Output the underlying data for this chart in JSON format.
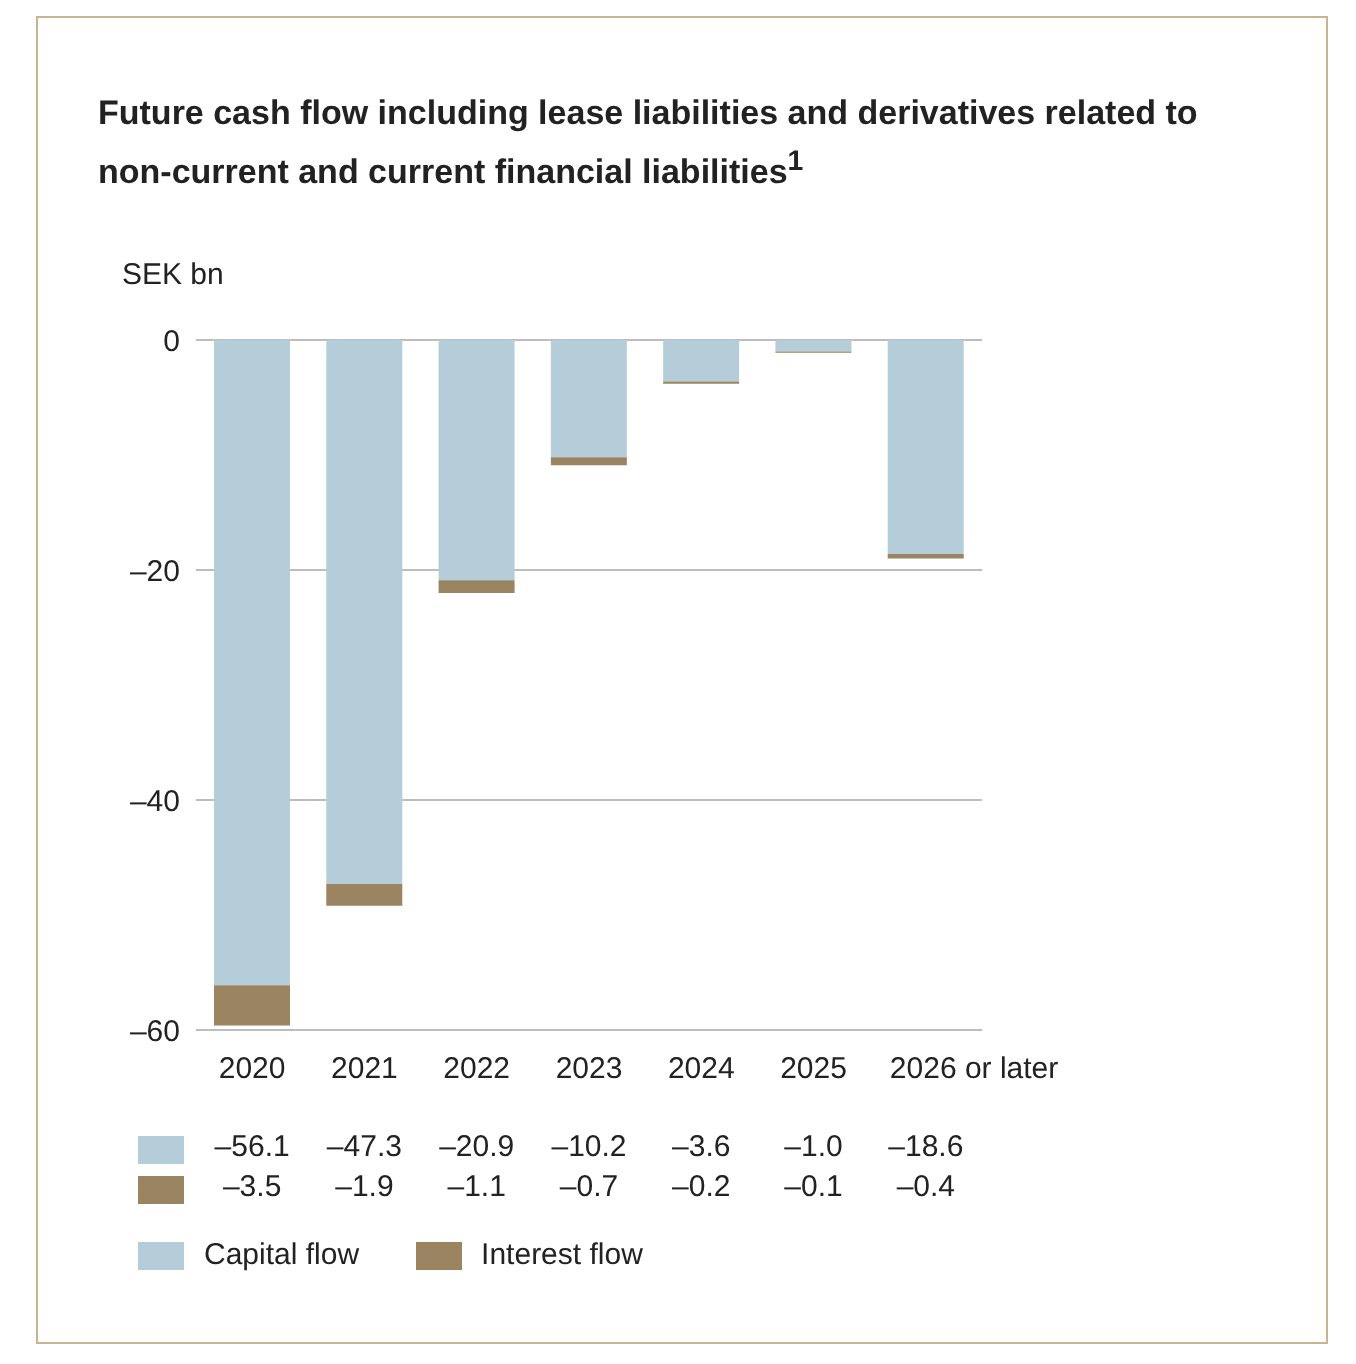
{
  "chart_data": {
    "type": "bar",
    "stacked": true,
    "title": "Future cash flow including lease liabilities and derivatives related to non-current and current financial liabilities$^{1}$",
    "ylabel": "SEK bn",
    "categories": [
      "2020",
      "2021",
      "2022",
      "2023",
      "2024",
      "2025",
      "2026 or later"
    ],
    "series": [
      {
        "name": "Capital flow",
        "color": "#b5cdd8",
        "values": [
          -56.1,
          -47.3,
          -20.9,
          -10.2,
          -3.6,
          -1.0,
          -18.6
        ],
        "value_labels": [
          "–56.1",
          "–47.3",
          "–20.9",
          "–10.2",
          "–3.6",
          "–1.0",
          "–18.6"
        ]
      },
      {
        "name": "Interest flow",
        "color": "#9a8462",
        "values": [
          -3.5,
          -1.9,
          -1.1,
          -0.7,
          -0.2,
          -0.1,
          -0.4
        ],
        "value_labels": [
          "–3.5",
          "–1.9",
          "–1.1",
          "–0.7",
          "–0.2",
          "–0.1",
          "–0.4"
        ]
      }
    ],
    "ylim": [
      -60,
      0
    ],
    "yticks": [
      {
        "value": -60,
        "label": "–60"
      },
      {
        "value": -40,
        "label": "–40"
      },
      {
        "value": -20,
        "label": "–20"
      },
      0
    ],
    "grid": "y",
    "legend": "bottom"
  }
}
